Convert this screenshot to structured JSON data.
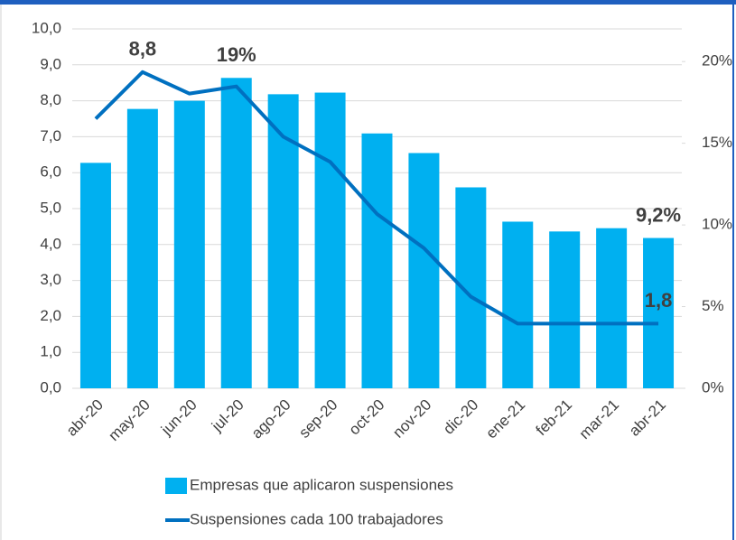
{
  "chart_data": {
    "type": "bar_line",
    "categories": [
      "abr-20",
      "may-20",
      "jun-20",
      "jul-20",
      "ago-20",
      "sep-20",
      "oct-20",
      "nov-20",
      "dic-20",
      "ene-21",
      "feb-21",
      "mar-21",
      "abr-21"
    ],
    "series": [
      {
        "name": "Empresas que aplicaron suspensiones",
        "type": "bar",
        "axis": "y2",
        "color": "#00b0f0",
        "values": [
          13.8,
          17.1,
          17.6,
          19,
          18.0,
          18.1,
          15.6,
          14.4,
          12.3,
          10.2,
          9.6,
          9.8,
          9.2
        ],
        "value_labels": [
          null,
          null,
          null,
          "19%",
          null,
          null,
          null,
          null,
          null,
          null,
          null,
          null,
          "9,2%"
        ]
      },
      {
        "name": "Suspensiones cada 100 trabajadores",
        "type": "line",
        "axis": "y",
        "color": "#0070c0",
        "values": [
          7.5,
          8.8,
          8.2,
          8.4,
          7.0,
          6.3,
          4.85,
          3.9,
          2.55,
          1.8,
          1.8,
          1.8,
          1.8
        ],
        "value_labels": [
          null,
          "8,8",
          null,
          null,
          null,
          null,
          null,
          null,
          null,
          null,
          null,
          null,
          "1,8"
        ]
      }
    ],
    "ylim": [
      0,
      10
    ],
    "yticks": [
      {
        "value": 0,
        "label": "0,0"
      },
      {
        "value": 1,
        "label": "1,0"
      },
      {
        "value": 2,
        "label": "2,0"
      },
      {
        "value": 3,
        "label": "3,0"
      },
      {
        "value": 4,
        "label": "4,0"
      },
      {
        "value": 5,
        "label": "5,0"
      },
      {
        "value": 6,
        "label": "6,0"
      },
      {
        "value": 7,
        "label": "7,0"
      },
      {
        "value": 8,
        "label": "8,0"
      },
      {
        "value": 9,
        "label": "9,0"
      },
      {
        "value": 10,
        "label": "10,0"
      }
    ],
    "y2lim": [
      0,
      22
    ],
    "y2ticks": [
      {
        "value": 0,
        "label": "0%"
      },
      {
        "value": 5,
        "label": "5%"
      },
      {
        "value": 10,
        "label": "10%"
      },
      {
        "value": 15,
        "label": "15%"
      },
      {
        "value": 20,
        "label": "20%"
      }
    ],
    "grid": true
  }
}
